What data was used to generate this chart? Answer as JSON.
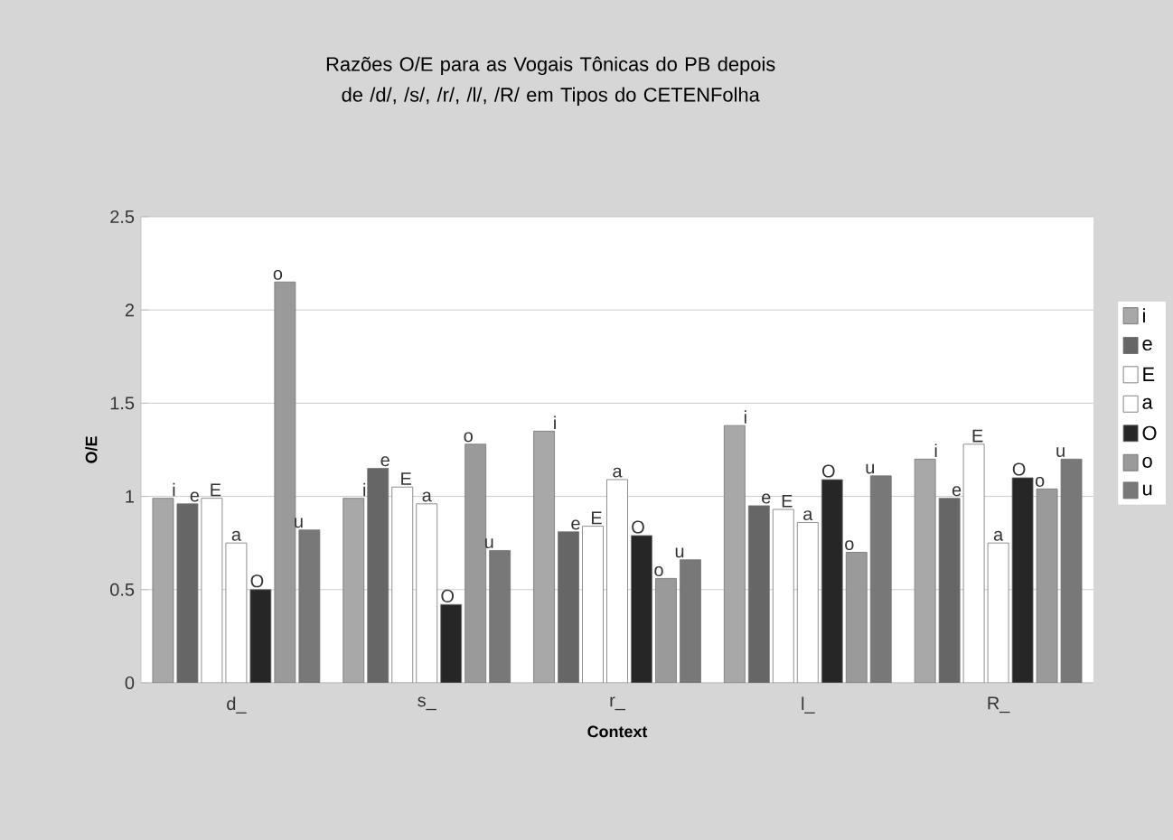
{
  "chart_data": {
    "type": "bar",
    "title": "Razões O/E para as Vogais Tônicas do PB depois de /d/, /s/, /r/, /l/, /R/ em Tipos do CETENFolha",
    "xlabel": "Context",
    "ylabel": "O/E",
    "categories": [
      "d_",
      "s_",
      "r_",
      "l_",
      "R_"
    ],
    "series": [
      {
        "name": "i",
        "color": "#a8a8a8",
        "values": [
          0.99,
          0.99,
          1.35,
          1.38,
          1.2
        ],
        "value_labels": [
          "i",
          "i",
          "i",
          "i",
          "i"
        ]
      },
      {
        "name": "e",
        "color": "#666666",
        "values": [
          0.96,
          1.15,
          0.81,
          0.95,
          0.99
        ],
        "value_labels": [
          "e",
          "e",
          "e",
          "e",
          "e"
        ]
      },
      {
        "name": "E",
        "color": "#ffffff",
        "values": [
          0.99,
          1.05,
          0.84,
          0.93,
          1.28
        ],
        "value_labels": [
          "E",
          "E",
          "E",
          "E",
          "E"
        ]
      },
      {
        "name": "a",
        "color": "#ffffff",
        "values": [
          0.75,
          0.96,
          1.09,
          0.86,
          0.75
        ],
        "value_labels": [
          "a",
          "a",
          "a",
          "a",
          "a"
        ]
      },
      {
        "name": "O",
        "color": "#262626",
        "values": [
          0.5,
          0.42,
          0.79,
          1.09,
          1.1
        ],
        "value_labels": [
          "O",
          "O",
          "O",
          "O",
          "O"
        ]
      },
      {
        "name": "o",
        "color": "#9a9a9a",
        "values": [
          2.15,
          1.28,
          0.56,
          0.7,
          1.04
        ],
        "value_labels": [
          "o",
          "o",
          "o",
          "o",
          "o"
        ]
      },
      {
        "name": "u",
        "color": "#787878",
        "values": [
          0.82,
          0.71,
          0.66,
          1.11,
          1.2
        ],
        "value_labels": [
          "u",
          "u",
          "u",
          "u",
          "u"
        ]
      }
    ],
    "ylim": [
      0,
      2.5
    ],
    "yticks": [
      0,
      0.5,
      1,
      1.5,
      2,
      2.5
    ],
    "grid": "y",
    "legend": "right"
  }
}
